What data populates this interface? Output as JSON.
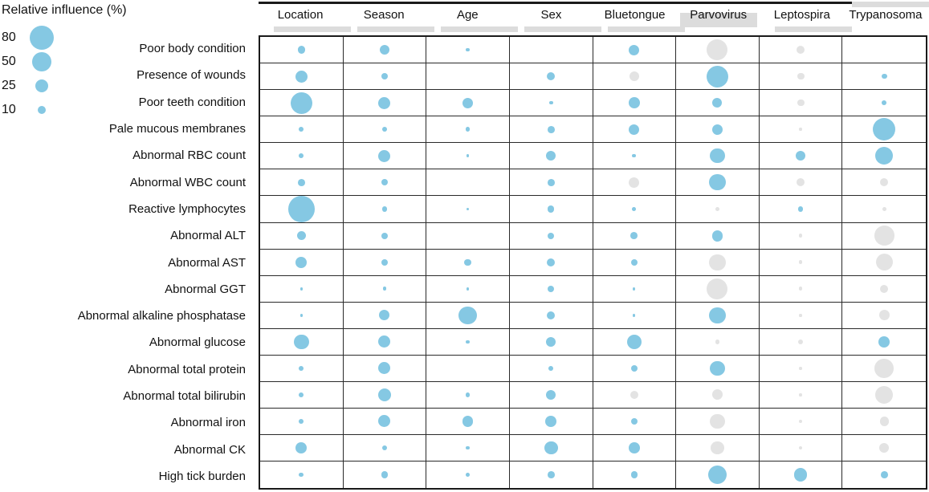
{
  "colors": {
    "bubble_blue": "#85C8E3",
    "bubble_gray": "#E3E3E3",
    "grid_line": "#2a2a2a",
    "header_shade": "#dcdcdc"
  },
  "chart_data": {
    "type": "heatmap",
    "mark": "bubble",
    "title": "Relative influence (%)",
    "legend": {
      "label": "Relative influence (%)",
      "position": "top-left",
      "sizes": [
        80,
        50,
        25,
        10
      ]
    },
    "size_encoding": "bubble area proportional to relative influence percent",
    "color_encoding": {
      "blue": "#85C8E3",
      "gray": "#E3E3E3"
    },
    "columns": [
      "Location",
      "Season",
      "Age",
      "Sex",
      "Bluetongue",
      "Parvovirus",
      "Leptospira",
      "Trypanosoma"
    ],
    "rows": [
      {
        "label": "Poor body condition",
        "cells": [
          {
            "v": 8,
            "c": "blue"
          },
          {
            "v": 13,
            "c": "blue"
          },
          {
            "v": 2,
            "c": "blue"
          },
          null,
          {
            "v": 15,
            "c": "blue"
          },
          {
            "v": 60,
            "c": "gray"
          },
          {
            "v": 9,
            "c": "gray"
          },
          null
        ]
      },
      {
        "label": "Presence of wounds",
        "cells": [
          {
            "v": 20,
            "c": "blue"
          },
          {
            "v": 6,
            "c": "blue"
          },
          null,
          {
            "v": 9,
            "c": "blue"
          },
          {
            "v": 13,
            "c": "gray"
          },
          {
            "v": 65,
            "c": "blue"
          },
          {
            "v": 7,
            "c": "gray"
          },
          {
            "v": 4,
            "c": "blue"
          }
        ]
      },
      {
        "label": "Poor teeth condition",
        "cells": [
          {
            "v": 65,
            "c": "blue"
          },
          {
            "v": 20,
            "c": "blue"
          },
          {
            "v": 15,
            "c": "blue"
          },
          {
            "v": 2,
            "c": "blue"
          },
          {
            "v": 17,
            "c": "blue"
          },
          {
            "v": 13,
            "c": "blue"
          },
          {
            "v": 7,
            "c": "gray"
          },
          {
            "v": 3,
            "c": "blue"
          }
        ]
      },
      {
        "label": "Pale mucous membranes",
        "cells": [
          {
            "v": 3,
            "c": "blue"
          },
          {
            "v": 3,
            "c": "blue"
          },
          {
            "v": 3,
            "c": "blue"
          },
          {
            "v": 7,
            "c": "blue"
          },
          {
            "v": 15,
            "c": "blue"
          },
          {
            "v": 15,
            "c": "blue"
          },
          {
            "v": 1,
            "c": "gray"
          },
          {
            "v": 70,
            "c": "blue"
          }
        ]
      },
      {
        "label": "Abnormal RBC count",
        "cells": [
          {
            "v": 3,
            "c": "blue"
          },
          {
            "v": 20,
            "c": "blue"
          },
          {
            "v": 1,
            "c": "blue"
          },
          {
            "v": 13,
            "c": "blue"
          },
          {
            "v": 2,
            "c": "blue"
          },
          {
            "v": 30,
            "c": "blue"
          },
          {
            "v": 13,
            "c": "blue"
          },
          {
            "v": 45,
            "c": "blue"
          }
        ]
      },
      {
        "label": "Abnormal WBC count",
        "cells": [
          {
            "v": 7,
            "c": "blue"
          },
          {
            "v": 6,
            "c": "blue"
          },
          null,
          {
            "v": 7,
            "c": "blue"
          },
          {
            "v": 15,
            "c": "gray"
          },
          {
            "v": 36,
            "c": "blue"
          },
          {
            "v": 9,
            "c": "gray"
          },
          {
            "v": 9,
            "c": "gray"
          }
        ]
      },
      {
        "label": "Reactive lymphocytes",
        "cells": [
          {
            "v": 95,
            "c": "blue"
          },
          {
            "v": 4,
            "c": "blue"
          },
          {
            "v": 1,
            "c": "blue"
          },
          {
            "v": 6,
            "c": "blue"
          },
          {
            "v": 2,
            "c": "blue"
          },
          {
            "v": 2,
            "c": "gray"
          },
          {
            "v": 4,
            "c": "blue"
          },
          {
            "v": 2,
            "c": "gray"
          }
        ]
      },
      {
        "label": "Abnormal ALT",
        "cells": [
          {
            "v": 11,
            "c": "blue"
          },
          {
            "v": 6,
            "c": "blue"
          },
          null,
          {
            "v": 6,
            "c": "blue"
          },
          {
            "v": 7,
            "c": "blue"
          },
          {
            "v": 17,
            "c": "blue"
          },
          {
            "v": 2,
            "c": "gray"
          },
          {
            "v": 55,
            "c": "gray"
          }
        ]
      },
      {
        "label": "Abnormal AST",
        "cells": [
          {
            "v": 17,
            "c": "blue"
          },
          {
            "v": 6,
            "c": "blue"
          },
          {
            "v": 6,
            "c": "blue"
          },
          {
            "v": 9,
            "c": "blue"
          },
          {
            "v": 6,
            "c": "blue"
          },
          {
            "v": 36,
            "c": "gray"
          },
          {
            "v": 2,
            "c": "gray"
          },
          {
            "v": 40,
            "c": "gray"
          }
        ]
      },
      {
        "label": "Abnormal GGT",
        "cells": [
          {
            "v": 1,
            "c": "blue"
          },
          {
            "v": 2,
            "c": "blue"
          },
          {
            "v": 1,
            "c": "blue"
          },
          {
            "v": 6,
            "c": "blue"
          },
          {
            "v": 1,
            "c": "blue"
          },
          {
            "v": 60,
            "c": "gray"
          },
          {
            "v": 2,
            "c": "gray"
          },
          {
            "v": 9,
            "c": "gray"
          }
        ]
      },
      {
        "label": "Abnormal alkaline phosphatase",
        "cells": [
          {
            "v": 1,
            "c": "blue"
          },
          {
            "v": 15,
            "c": "blue"
          },
          {
            "v": 45,
            "c": "blue"
          },
          {
            "v": 9,
            "c": "blue"
          },
          {
            "v": 1,
            "c": "blue"
          },
          {
            "v": 36,
            "c": "blue"
          },
          {
            "v": 1,
            "c": "gray"
          },
          {
            "v": 15,
            "c": "gray"
          }
        ]
      },
      {
        "label": "Abnormal glucose",
        "cells": [
          {
            "v": 30,
            "c": "blue"
          },
          {
            "v": 20,
            "c": "blue"
          },
          {
            "v": 2,
            "c": "blue"
          },
          {
            "v": 13,
            "c": "blue"
          },
          {
            "v": 30,
            "c": "blue"
          },
          {
            "v": 3,
            "c": "gray"
          },
          {
            "v": 4,
            "c": "gray"
          },
          {
            "v": 17,
            "c": "blue"
          }
        ]
      },
      {
        "label": "Abnormal total protein",
        "cells": [
          {
            "v": 3,
            "c": "blue"
          },
          {
            "v": 20,
            "c": "blue"
          },
          null,
          {
            "v": 3,
            "c": "blue"
          },
          {
            "v": 6,
            "c": "blue"
          },
          {
            "v": 30,
            "c": "blue"
          },
          {
            "v": 1,
            "c": "gray"
          },
          {
            "v": 50,
            "c": "gray"
          }
        ]
      },
      {
        "label": "Abnormal total bilirubin",
        "cells": [
          {
            "v": 3,
            "c": "blue"
          },
          {
            "v": 23,
            "c": "blue"
          },
          {
            "v": 3,
            "c": "blue"
          },
          {
            "v": 13,
            "c": "blue"
          },
          {
            "v": 9,
            "c": "gray"
          },
          {
            "v": 15,
            "c": "gray"
          },
          {
            "v": 1,
            "c": "gray"
          },
          {
            "v": 45,
            "c": "gray"
          }
        ]
      },
      {
        "label": "Abnormal iron",
        "cells": [
          {
            "v": 3,
            "c": "blue"
          },
          {
            "v": 20,
            "c": "blue"
          },
          {
            "v": 17,
            "c": "blue"
          },
          {
            "v": 17,
            "c": "blue"
          },
          {
            "v": 6,
            "c": "blue"
          },
          {
            "v": 30,
            "c": "gray"
          },
          {
            "v": 2,
            "c": "gray"
          },
          {
            "v": 11,
            "c": "gray"
          }
        ]
      },
      {
        "label": "Abnormal CK",
        "cells": [
          {
            "v": 17,
            "c": "blue"
          },
          {
            "v": 4,
            "c": "blue"
          },
          {
            "v": 2,
            "c": "blue"
          },
          {
            "v": 25,
            "c": "blue"
          },
          {
            "v": 17,
            "c": "blue"
          },
          {
            "v": 25,
            "c": "gray"
          },
          {
            "v": 2,
            "c": "gray"
          },
          {
            "v": 13,
            "c": "gray"
          }
        ]
      },
      {
        "label": "High tick burden",
        "cells": [
          {
            "v": 3,
            "c": "blue"
          },
          {
            "v": 7,
            "c": "blue"
          },
          {
            "v": 2,
            "c": "blue"
          },
          {
            "v": 7,
            "c": "blue"
          },
          {
            "v": 6,
            "c": "blue"
          },
          {
            "v": 50,
            "c": "blue"
          },
          {
            "v": 23,
            "c": "blue"
          },
          {
            "v": 7,
            "c": "blue"
          }
        ]
      }
    ]
  }
}
